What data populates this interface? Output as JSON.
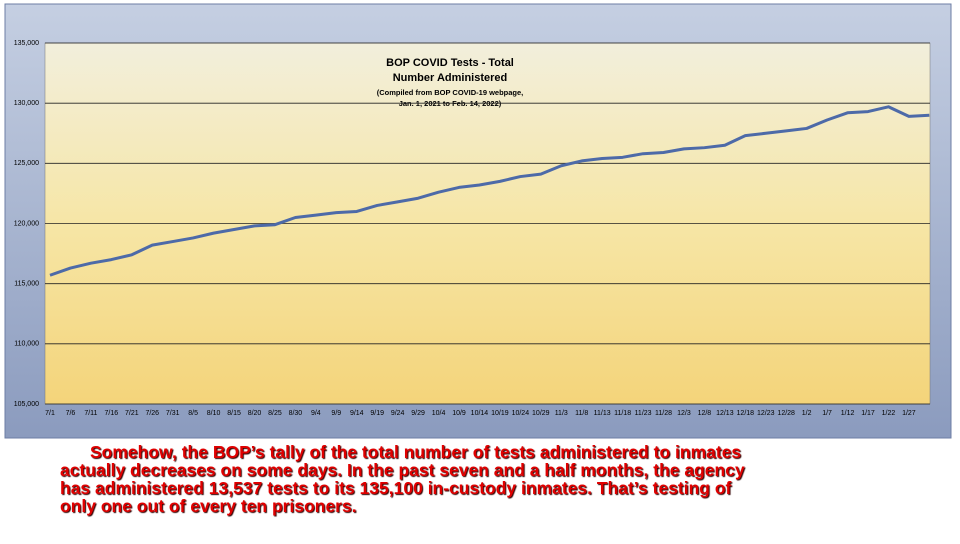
{
  "chart_data": {
    "type": "line",
    "title": [
      "BOP COVID Tests - Total",
      "Number Administered"
    ],
    "subtitle": [
      "(Compiled from BOP COVID-19 webpage,",
      "Jan. 1, 2021 to Feb. 14, 2022)"
    ],
    "categories": [
      "7/1",
      "7/6",
      "7/11",
      "7/16",
      "7/21",
      "7/26",
      "7/31",
      "8/5",
      "8/10",
      "8/15",
      "8/20",
      "8/25",
      "8/30",
      "9/4",
      "9/9",
      "9/14",
      "9/19",
      "9/24",
      "9/29",
      "10/4",
      "10/9",
      "10/14",
      "10/19",
      "10/24",
      "10/29",
      "11/3",
      "11/8",
      "11/13",
      "11/18",
      "11/23",
      "11/28",
      "12/3",
      "12/8",
      "12/13",
      "12/18",
      "12/23",
      "12/28",
      "1/2",
      "1/7",
      "1/12",
      "1/17",
      "1/22",
      "1/27",
      null
    ],
    "values": [
      115700,
      116300,
      116700,
      117000,
      117400,
      118200,
      118500,
      118800,
      119200,
      119500,
      119800,
      119900,
      120500,
      120700,
      120900,
      121000,
      121500,
      121800,
      122100,
      122600,
      123000,
      123200,
      123500,
      123900,
      124100,
      124800,
      125200,
      125400,
      125500,
      125800,
      125900,
      126200,
      126300,
      126500,
      127300,
      127500,
      127700,
      127900,
      128600,
      129200,
      129300,
      129700,
      128900,
      129000
    ],
    "color": "#4d6aa8",
    "ylim": [
      105000,
      135000
    ],
    "yticks": [
      {
        "value": 105000,
        "label": "105,000"
      },
      {
        "value": 110000,
        "label": "110,000"
      },
      {
        "value": 115000,
        "label": "115,000"
      },
      {
        "value": 120000,
        "label": "120,000"
      },
      {
        "value": 125000,
        "label": "125,000"
      },
      {
        "value": 130000,
        "label": "130,000"
      },
      {
        "value": 135000,
        "label": "135,000"
      }
    ],
    "grid": true
  },
  "caption": [
    "Somehow, the BOP’s tally of the total number of tests administered to inmates",
    "actually decreases on some days. In the past seven and a half months, the agency",
    "has administered 13,537 tests to its 135,100 in-custody inmates. That’s testing of",
    "only one out of every ten prisoners."
  ]
}
